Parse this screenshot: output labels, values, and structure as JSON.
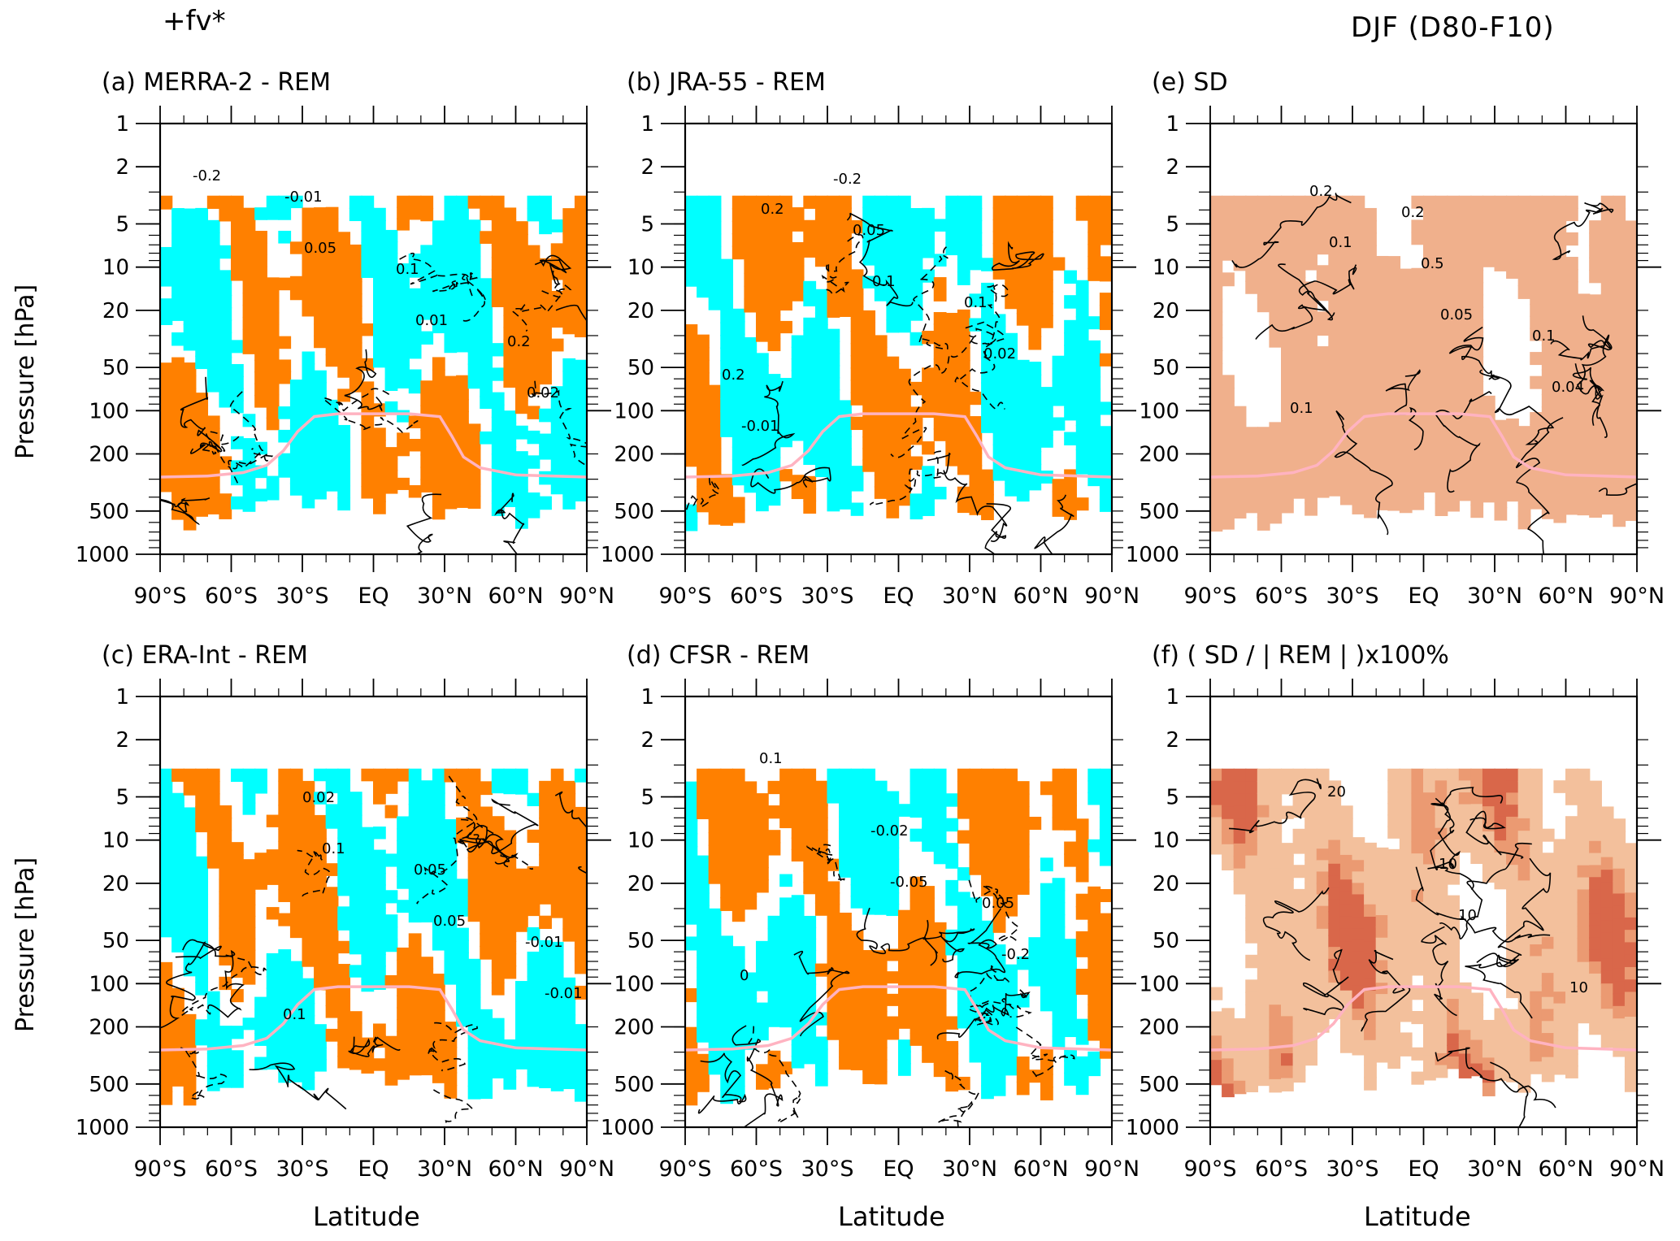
{
  "figure": {
    "header_left": "+fv*",
    "header_right": "DJF (D80-F10)",
    "y_axis_label": "Pressure [hPa]",
    "x_axis_label": "Latitude"
  },
  "colors": {
    "positive_fill": "#ff8000",
    "negative_fill": "#00ffff",
    "sd_fill": "#f0b08c",
    "ratio_light": "#f3c09c",
    "ratio_mid": "#eb9a72",
    "ratio_dark": "#d9674a",
    "tropopause_line": "#ffb3c1",
    "contour": "#000000"
  },
  "chart_data": [
    {
      "panel": "a",
      "type": "heatmap",
      "title": "(a) MERRA-2 - REM",
      "x_ticks": [
        "90°S",
        "60°S",
        "30°S",
        "EQ",
        "30°N",
        "60°N",
        "90°N"
      ],
      "y_ticks": [
        "1",
        "2",
        "5",
        "10",
        "20",
        "50",
        "100",
        "200",
        "500",
        "1000"
      ],
      "xlim": [
        -90,
        90
      ],
      "ylim": [
        1000,
        1
      ],
      "y_scale": "log",
      "contour_labels": [
        "-0.2",
        "0.05",
        "0.01",
        "0.02",
        "-0.01",
        "0.1",
        "0.2"
      ]
    },
    {
      "panel": "b",
      "type": "heatmap",
      "title": "(b) JRA-55 - REM",
      "x_ticks": [
        "90°S",
        "60°S",
        "30°S",
        "EQ",
        "30°N",
        "60°N",
        "90°N"
      ],
      "y_ticks": [
        "1",
        "2",
        "5",
        "10",
        "20",
        "50",
        "100",
        "200",
        "500",
        "1000"
      ],
      "xlim": [
        -90,
        90
      ],
      "ylim": [
        1000,
        1
      ],
      "y_scale": "log",
      "contour_labels": [
        "0.2",
        "0.1",
        "0.02",
        "-0.01",
        "0.05",
        "0.1",
        "0.2",
        "-0.2"
      ]
    },
    {
      "panel": "e",
      "type": "heatmap",
      "title": "(e) SD",
      "x_ticks": [
        "90°S",
        "60°S",
        "30°S",
        "EQ",
        "30°N",
        "60°N",
        "90°N"
      ],
      "y_ticks": [
        "1",
        "2",
        "5",
        "10",
        "20",
        "50",
        "100",
        "200",
        "500",
        "1000"
      ],
      "xlim": [
        -90,
        90
      ],
      "ylim": [
        1000,
        1
      ],
      "y_scale": "log",
      "contour_labels": [
        "0.1",
        "0.05",
        "0.04",
        "0.2",
        "0.5",
        "0.1",
        "0.1",
        "0.2"
      ]
    },
    {
      "panel": "c",
      "type": "heatmap",
      "title": "(c) ERA-Int - REM",
      "x_ticks": [
        "90°S",
        "60°S",
        "30°S",
        "EQ",
        "30°N",
        "60°N",
        "90°N"
      ],
      "y_ticks": [
        "1",
        "2",
        "5",
        "10",
        "20",
        "50",
        "100",
        "200",
        "500",
        "1000"
      ],
      "xlim": [
        -90,
        90
      ],
      "ylim": [
        1000,
        1
      ],
      "y_scale": "log",
      "contour_labels": [
        "0.1",
        "0.05",
        "-0.01",
        "0.02",
        "0.05",
        "-0.01",
        "0.1"
      ]
    },
    {
      "panel": "d",
      "type": "heatmap",
      "title": "(d) CFSR - REM",
      "x_ticks": [
        "90°S",
        "60°S",
        "30°S",
        "EQ",
        "30°N",
        "60°N",
        "90°N"
      ],
      "y_ticks": [
        "1",
        "2",
        "5",
        "10",
        "20",
        "50",
        "100",
        "200",
        "500",
        "1000"
      ],
      "xlim": [
        -90,
        90
      ],
      "ylim": [
        1000,
        1
      ],
      "y_scale": "log",
      "contour_labels": [
        "-0.05",
        "-0.2",
        "0.1",
        "-0.02",
        "0.05",
        "0"
      ]
    },
    {
      "panel": "f",
      "type": "heatmap",
      "title": "(f) ( SD / | REM | )x100%",
      "x_ticks": [
        "90°S",
        "60°S",
        "30°S",
        "EQ",
        "30°N",
        "60°N",
        "90°N"
      ],
      "y_ticks": [
        "1",
        "2",
        "5",
        "10",
        "20",
        "50",
        "100",
        "200",
        "500",
        "1000"
      ],
      "xlim": [
        -90,
        90
      ],
      "ylim": [
        1000,
        1
      ],
      "y_scale": "log",
      "contour_labels": [
        "10",
        "10",
        "20",
        "10"
      ]
    }
  ]
}
